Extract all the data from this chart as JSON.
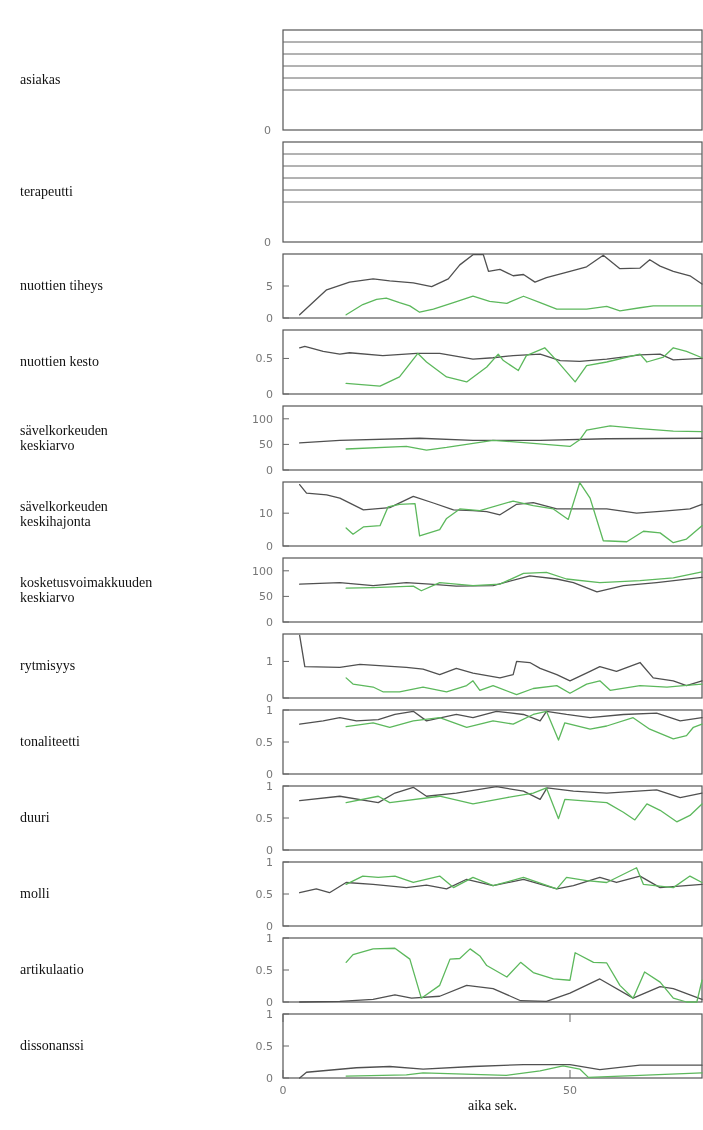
{
  "chart_data": [
    {
      "type": "other",
      "ylabel": "asiakas",
      "annotations": [
        "0"
      ]
    },
    {
      "type": "other",
      "ylabel": "terapeutti",
      "annotations": [
        "0"
      ]
    },
    {
      "type": "line",
      "ylabel": "nuottien tiheys",
      "xlim": [
        0,
        73
      ],
      "ylim": [
        0,
        10
      ],
      "yticks": [
        0,
        5
      ],
      "tick_labels": "y",
      "series": [
        {
          "color": "#505050",
          "x": [
            2.9,
            7.6,
            11.6,
            15.7,
            18.6,
            22.7,
            25.9,
            28.8,
            30.8,
            33.1,
            34.9,
            35.8,
            37.8,
            40.1,
            41.9,
            43.9,
            45.9,
            50,
            52.9,
            55.8,
            58.7,
            62.2,
            63.9,
            65.7,
            68,
            70.9,
            73
          ],
          "values": [
            0.5,
            4.4,
            5.6,
            6.1,
            5.8,
            5.5,
            4.9,
            6.1,
            8.3,
            9.9,
            9.9,
            7.3,
            7.6,
            6.6,
            6.8,
            5.6,
            6.3,
            7.3,
            8.0,
            9.8,
            7.7,
            7.8,
            9.1,
            8.1,
            7.3,
            6.6,
            5.3
          ]
        },
        {
          "color": "#5cb85c",
          "x": [
            11,
            13.9,
            16.3,
            18,
            20.3,
            22.1,
            23.8,
            26.2,
            29.7,
            33.1,
            36,
            39,
            41.9,
            44.8,
            47.7,
            52.9,
            56.4,
            58.7,
            62.2,
            64.5,
            68,
            73
          ],
          "values": [
            0.5,
            2.1,
            2.9,
            3.1,
            2.4,
            1.9,
            0.9,
            1.4,
            2.4,
            3.4,
            2.6,
            2.3,
            3.4,
            2.4,
            1.4,
            1.4,
            1.8,
            1.1,
            1.6,
            1.9,
            1.9,
            1.9
          ]
        }
      ]
    },
    {
      "type": "line",
      "ylabel": "nuottien kesto",
      "xlim": [
        0,
        73
      ],
      "ylim": [
        0,
        0.9
      ],
      "yticks": [
        0,
        0.5
      ],
      "tick_labels": "y",
      "series": [
        {
          "color": "#505050",
          "x": [
            2.9,
            3.8,
            7,
            9.9,
            11.6,
            17.4,
            23.3,
            27.3,
            33.1,
            36.6,
            40.1,
            44.8,
            48.3,
            51.7,
            56.4,
            62.2,
            65.7,
            68,
            73
          ],
          "values": [
            0.65,
            0.67,
            0.6,
            0.56,
            0.58,
            0.54,
            0.57,
            0.57,
            0.49,
            0.51,
            0.54,
            0.56,
            0.47,
            0.46,
            0.49,
            0.55,
            0.56,
            0.48,
            0.5
          ]
        },
        {
          "color": "#5cb85c",
          "x": [
            11,
            16.9,
            20.3,
            23.5,
            25,
            28.5,
            32,
            35.5,
            37.5,
            38.4,
            41,
            42.4,
            45.6,
            47.7,
            50.9,
            52.9,
            56.4,
            62.2,
            63.4,
            66.3,
            68,
            70.3,
            73
          ],
          "values": [
            0.15,
            0.11,
            0.24,
            0.57,
            0.45,
            0.24,
            0.17,
            0.38,
            0.56,
            0.47,
            0.33,
            0.54,
            0.65,
            0.47,
            0.17,
            0.4,
            0.45,
            0.56,
            0.45,
            0.52,
            0.65,
            0.6,
            0.51
          ]
        }
      ]
    },
    {
      "type": "line",
      "ylabel": "sävelkorkeuden keskiarvo",
      "xlim": [
        0,
        73
      ],
      "ylim": [
        0,
        125
      ],
      "yticks": [
        0,
        50,
        100
      ],
      "tick_labels": "y",
      "series": [
        {
          "color": "#505050",
          "x": [
            2.9,
            9.9,
            23.8,
            33.1,
            44.8,
            56.4,
            73
          ],
          "values": [
            53,
            58,
            62,
            58,
            58,
            61,
            62
          ]
        },
        {
          "color": "#5cb85c",
          "x": [
            11,
            21.5,
            25,
            28.5,
            36.6,
            43.6,
            50,
            51.7,
            52.9,
            57,
            62.2,
            68,
            73
          ],
          "values": [
            41,
            46,
            39,
            44,
            58,
            52,
            46,
            59,
            78,
            86,
            81,
            76,
            75
          ]
        }
      ]
    },
    {
      "type": "line",
      "ylabel": "sävelkorkeuden keskihajonta",
      "xlim": [
        0,
        73
      ],
      "ylim": [
        0,
        19.5
      ],
      "yticks": [
        0,
        10
      ],
      "tick_labels": "y",
      "series": [
        {
          "color": "#505050",
          "x": [
            2.9,
            4.1,
            7.6,
            9.9,
            14,
            18.6,
            22.7,
            26.2,
            29.7,
            33.1,
            35.5,
            37.8,
            40.7,
            43.6,
            47.7,
            51.7,
            56.4,
            61.6,
            66.3,
            70.9,
            73
          ],
          "values": [
            18.7,
            16.1,
            15.6,
            14.6,
            11,
            11.7,
            15.1,
            13.1,
            11,
            10.8,
            10.5,
            9.5,
            12.7,
            13.2,
            11.3,
            11.3,
            11.3,
            10,
            10.6,
            11.3,
            12.7
          ]
        },
        {
          "color": "#5cb85c",
          "x": [
            11,
            12.2,
            14,
            16.9,
            18.3,
            20.3,
            23,
            23.8,
            27.3,
            28.5,
            30.8,
            34.3,
            40.1,
            43.6,
            47.1,
            49.7,
            51.7,
            53.5,
            55.8,
            59.9,
            62.8,
            65.7,
            68,
            70.3,
            73
          ],
          "values": [
            5.5,
            3.6,
            5.8,
            6.2,
            11.9,
            12.7,
            12.9,
            3.1,
            5,
            8.4,
            11.3,
            10.8,
            13.7,
            12.3,
            11.3,
            8.1,
            19.3,
            14.6,
            1.6,
            1.3,
            4.5,
            4,
            1,
            2.1,
            6.2
          ]
        }
      ]
    },
    {
      "type": "line",
      "ylabel": "kosketusvoimakkuuden keskiarvo",
      "xlim": [
        0,
        73
      ],
      "ylim": [
        0,
        125
      ],
      "yticks": [
        0,
        50,
        100
      ],
      "tick_labels": "y",
      "series": [
        {
          "color": "#505050",
          "x": [
            2.9,
            9.9,
            15.7,
            21.5,
            25.6,
            30.2,
            36.6,
            43,
            47.7,
            50.6,
            54.7,
            59.3,
            65.1,
            73
          ],
          "values": [
            74,
            77,
            71,
            77,
            74,
            70,
            71,
            90,
            84,
            77,
            59,
            71,
            77,
            87
          ]
        },
        {
          "color": "#5cb85c",
          "x": [
            11,
            15.7,
            22.7,
            24.1,
            27.3,
            33.1,
            37.8,
            41.9,
            45.9,
            49.4,
            55.2,
            62.2,
            68,
            73
          ],
          "values": [
            66,
            67,
            70,
            61,
            77,
            71,
            74,
            95,
            97,
            84,
            77,
            81,
            86,
            98
          ]
        }
      ]
    },
    {
      "type": "line",
      "ylabel": "rytmisyys",
      "xlim": [
        0,
        73
      ],
      "ylim": [
        0,
        1.75
      ],
      "yticks": [
        0,
        1
      ],
      "tick_labels": "y",
      "series": [
        {
          "color": "#505050",
          "x": [
            2.9,
            3.8,
            9.9,
            13.4,
            21.5,
            24.4,
            27.3,
            30.2,
            33.1,
            37.8,
            40.1,
            40.7,
            43,
            44.8,
            47.7,
            50,
            53.5,
            55.2,
            58.1,
            62.2,
            64.5,
            68,
            70.3,
            73
          ],
          "values": [
            1.71,
            0.86,
            0.84,
            0.92,
            0.84,
            0.79,
            0.64,
            0.81,
            0.68,
            0.55,
            0.64,
            1.0,
            0.97,
            0.81,
            0.64,
            0.47,
            0.73,
            0.86,
            0.73,
            0.97,
            0.55,
            0.47,
            0.34,
            0.47
          ]
        },
        {
          "color": "#5cb85c",
          "x": [
            11,
            12.2,
            15.7,
            17.4,
            20.3,
            24.4,
            28.5,
            32,
            33.1,
            34.3,
            36.6,
            40.7,
            43.6,
            47.7,
            50,
            52.9,
            55.2,
            57,
            62.2,
            66.9,
            69.8,
            73
          ],
          "values": [
            0.55,
            0.38,
            0.3,
            0.17,
            0.17,
            0.3,
            0.17,
            0.34,
            0.47,
            0.21,
            0.34,
            0.09,
            0.26,
            0.34,
            0.13,
            0.38,
            0.47,
            0.21,
            0.34,
            0.3,
            0.34,
            0.38
          ]
        }
      ]
    },
    {
      "type": "line",
      "ylabel": "tonaliteetti",
      "xlim": [
        0,
        73
      ],
      "ylim": [
        0,
        1
      ],
      "yticks": [
        0,
        0.5,
        1
      ],
      "tick_labels": "y",
      "series": [
        {
          "color": "#505050",
          "x": [
            2.9,
            7,
            9.9,
            12.8,
            16.6,
            19.5,
            22.7,
            25,
            30.2,
            33.1,
            37.2,
            41.9,
            44.8,
            45.9,
            49.4,
            53.5,
            59.3,
            65.1,
            69.2,
            73
          ],
          "values": [
            0.78,
            0.83,
            0.88,
            0.83,
            0.85,
            0.93,
            0.98,
            0.83,
            0.93,
            0.88,
            0.98,
            0.93,
            0.83,
            0.98,
            0.93,
            0.88,
            0.93,
            0.95,
            0.83,
            0.88
          ]
        },
        {
          "color": "#5cb85c",
          "x": [
            11,
            15.7,
            18.6,
            22.7,
            27.3,
            32,
            36.6,
            40.1,
            43.6,
            45.9,
            48,
            49.1,
            53.5,
            56.4,
            61,
            63.9,
            68,
            70.3,
            71.5,
            73
          ],
          "values": [
            0.74,
            0.8,
            0.73,
            0.83,
            0.88,
            0.73,
            0.83,
            0.78,
            0.93,
            0.98,
            0.53,
            0.8,
            0.7,
            0.75,
            0.88,
            0.7,
            0.55,
            0.6,
            0.73,
            0.78
          ]
        }
      ]
    },
    {
      "type": "line",
      "ylabel": "duuri",
      "xlim": [
        0,
        73
      ],
      "ylim": [
        0,
        1
      ],
      "yticks": [
        0,
        0.5,
        1
      ],
      "tick_labels": "y",
      "series": [
        {
          "color": "#505050",
          "x": [
            2.9,
            9.9,
            16.6,
            19.5,
            22.7,
            25,
            30.2,
            37.2,
            41.9,
            44.8,
            46,
            50.6,
            56.4,
            65.1,
            69.2,
            73
          ],
          "values": [
            0.77,
            0.84,
            0.74,
            0.89,
            0.98,
            0.84,
            0.89,
            0.99,
            0.92,
            0.79,
            0.97,
            0.92,
            0.89,
            0.94,
            0.82,
            0.89
          ]
        },
        {
          "color": "#5cb85c",
          "x": [
            11,
            16.6,
            18.6,
            27.3,
            33.1,
            39,
            43.6,
            45.9,
            48,
            49.1,
            56.4,
            59.3,
            61.3,
            63.4,
            65.7,
            68.6,
            70.9,
            73
          ],
          "values": [
            0.74,
            0.84,
            0.74,
            0.84,
            0.72,
            0.82,
            0.89,
            0.97,
            0.49,
            0.79,
            0.74,
            0.59,
            0.47,
            0.72,
            0.62,
            0.44,
            0.54,
            0.72
          ]
        }
      ]
    },
    {
      "type": "line",
      "ylabel": "molli",
      "xlim": [
        0,
        73
      ],
      "ylim": [
        0,
        1
      ],
      "yticks": [
        0,
        0.5,
        1
      ],
      "tick_labels": "y",
      "series": [
        {
          "color": "#505050",
          "x": [
            2.9,
            5.8,
            8.1,
            11,
            15.7,
            21.5,
            25,
            28.5,
            32,
            36.6,
            41.9,
            47.7,
            50.6,
            55.2,
            58.1,
            62.2,
            65.7,
            73
          ],
          "values": [
            0.52,
            0.58,
            0.52,
            0.68,
            0.65,
            0.6,
            0.64,
            0.58,
            0.73,
            0.63,
            0.73,
            0.58,
            0.63,
            0.76,
            0.68,
            0.78,
            0.6,
            0.65
          ]
        },
        {
          "color": "#5cb85c",
          "x": [
            11,
            13.9,
            16.6,
            19.5,
            22.7,
            27.3,
            29.7,
            33.1,
            36.6,
            41.9,
            47.7,
            49.4,
            52.9,
            56.4,
            61.6,
            62.8,
            68,
            70.9,
            73
          ],
          "values": [
            0.65,
            0.78,
            0.76,
            0.78,
            0.68,
            0.78,
            0.6,
            0.76,
            0.63,
            0.76,
            0.58,
            0.76,
            0.71,
            0.68,
            0.91,
            0.65,
            0.6,
            0.78,
            0.68
          ]
        }
      ]
    },
    {
      "type": "line",
      "ylabel": "artikulaatio",
      "xlim": [
        0,
        73
      ],
      "ylim": [
        0,
        1
      ],
      "yticks": [
        0,
        0.5,
        1
      ],
      "tick_labels": "y",
      "series": [
        {
          "color": "#505050",
          "x": [
            2.9,
            9.9,
            15.7,
            19.5,
            22.4,
            27.3,
            32,
            36.6,
            41.4,
            45.9,
            50,
            55.2,
            61,
            65.7,
            68,
            73
          ],
          "values": [
            0,
            0.01,
            0.04,
            0.11,
            0.06,
            0.09,
            0.26,
            0.21,
            0.02,
            0.01,
            0.14,
            0.36,
            0.06,
            0.24,
            0.21,
            0.04
          ]
        },
        {
          "color": "#5cb85c",
          "x": [
            11,
            12.2,
            15.7,
            19.5,
            22.1,
            24.1,
            27.3,
            29.1,
            30.8,
            32.6,
            34.3,
            35.5,
            39,
            41.4,
            43.6,
            47.1,
            50,
            50.9,
            54.1,
            56.4,
            58.7,
            61,
            63,
            65.7,
            68,
            70.3,
            72.1,
            73
          ],
          "values": [
            0.62,
            0.74,
            0.83,
            0.84,
            0.67,
            0.06,
            0.26,
            0.67,
            0.68,
            0.83,
            0.72,
            0.57,
            0.39,
            0.62,
            0.46,
            0.36,
            0.34,
            0.77,
            0.62,
            0.61,
            0.26,
            0.06,
            0.47,
            0.31,
            0.06,
            0,
            0,
            0.34
          ]
        }
      ]
    },
    {
      "type": "line",
      "ylabel": "dissonanssi",
      "xlabel": "aika sek.",
      "xlim": [
        0,
        73
      ],
      "ylim": [
        0,
        1
      ],
      "xticks": [
        0,
        50
      ],
      "yticks": [
        0,
        0.5,
        1
      ],
      "series": [
        {
          "color": "#505050",
          "x": [
            2.9,
            4.1,
            12.8,
            18.6,
            24.4,
            33.1,
            41.9,
            50,
            55.2,
            62.2,
            73
          ],
          "values": [
            0,
            0.09,
            0.16,
            0.18,
            0.14,
            0.18,
            0.21,
            0.21,
            0.13,
            0.2,
            0.2
          ]
        },
        {
          "color": "#5cb85c",
          "x": [
            11,
            21.5,
            24.4,
            38.9,
            44.8,
            48.8,
            51.7,
            53.2,
            62.2,
            73
          ],
          "values": [
            0.03,
            0.05,
            0.08,
            0.04,
            0.11,
            0.19,
            0.14,
            0.01,
            0.04,
            0.08
          ]
        }
      ]
    }
  ]
}
